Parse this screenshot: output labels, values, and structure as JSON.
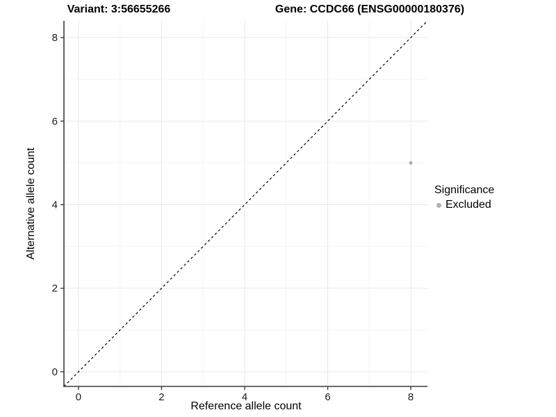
{
  "chart_data": {
    "type": "scatter",
    "titles": {
      "left": "Variant: 3:56655266",
      "right": "Gene: CCDC66 (ENSG00000180376)"
    },
    "xlabel": "Reference allele count",
    "ylabel": "Alternative allele count",
    "xlim": [
      -0.35,
      8.4
    ],
    "ylim": [
      -0.35,
      8.4
    ],
    "x_ticks": [
      0,
      2,
      4,
      6,
      8
    ],
    "y_ticks": [
      0,
      2,
      4,
      6,
      8
    ],
    "x_minor_ticks": [
      1,
      3,
      5,
      7
    ],
    "y_minor_ticks": [
      1,
      3,
      5,
      7
    ],
    "grid": "major and minor gridlines on, white background",
    "points": [
      {
        "x": 8,
        "y": 5,
        "significance": "Excluded"
      }
    ],
    "reference_line": {
      "type": "identity y=x",
      "style": "dashed",
      "color": "#000000",
      "from": [
        -0.35,
        -0.35
      ],
      "to": [
        8.4,
        8.4
      ]
    },
    "legend": {
      "title": "Significance",
      "position": "right",
      "entries": [
        {
          "label": "Excluded",
          "color": "#b0b0b0"
        }
      ]
    },
    "colors": {
      "point": "#b0b0b0",
      "grid_major": "#e8e8e8",
      "grid_minor": "#f4f4f4",
      "axis": "#3a3a3a",
      "background": "#ffffff",
      "tick_label": "#1a1a1a"
    }
  }
}
